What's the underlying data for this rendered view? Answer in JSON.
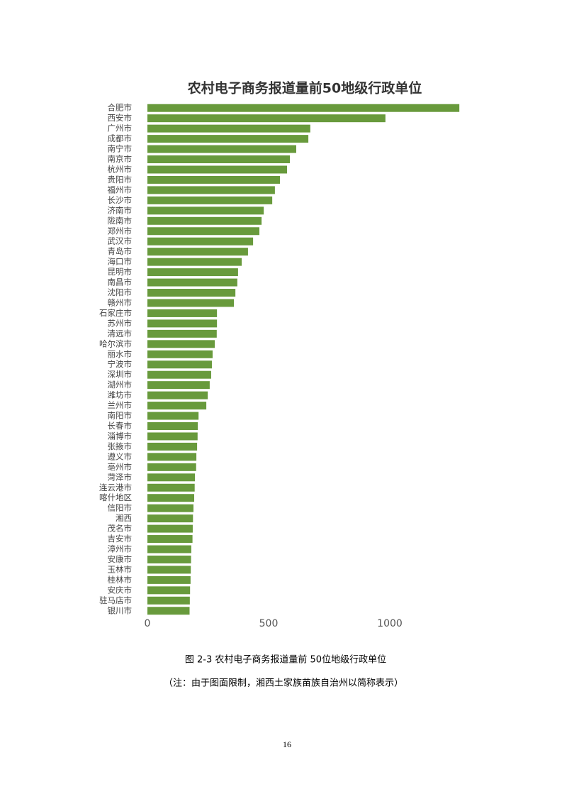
{
  "chart_data": {
    "type": "bar",
    "orientation": "horizontal",
    "title": "农村电子商务报道量前50地级行政单位",
    "categories": [
      "合肥市",
      "西安市",
      "广州市",
      "成都市",
      "南宁市",
      "南京市",
      "杭州市",
      "贵阳市",
      "福州市",
      "长沙市",
      "济南市",
      "陇南市",
      "郑州市",
      "武汉市",
      "青岛市",
      "海口市",
      "昆明市",
      "南昌市",
      "沈阳市",
      "赣州市",
      "石家庄市",
      "苏州市",
      "清远市",
      "哈尔滨市",
      "丽水市",
      "宁波市",
      "深圳市",
      "湖州市",
      "潍坊市",
      "兰州市",
      "南阳市",
      "长春市",
      "淄博市",
      "张掖市",
      "遵义市",
      "亳州市",
      "菏泽市",
      "连云港市",
      "喀什地区",
      "信阳市",
      "湘西",
      "茂名市",
      "吉安市",
      "漳州市",
      "安康市",
      "玉林市",
      "桂林市",
      "安庆市",
      "驻马店市",
      "银川市"
    ],
    "values": [
      1287,
      982,
      672,
      664,
      614,
      588,
      576,
      547,
      526,
      515,
      480,
      471,
      462,
      436,
      415,
      389,
      374,
      371,
      363,
      357,
      287,
      287,
      286,
      278,
      269,
      266,
      263,
      257,
      249,
      243,
      211,
      208,
      207,
      205,
      202,
      201,
      196,
      195,
      193,
      190,
      188,
      187,
      186,
      181,
      180,
      179,
      178,
      176,
      175,
      174
    ],
    "color": "#689a3c",
    "xlim": [
      0,
      1300
    ],
    "xticks": [
      0,
      500,
      1000
    ],
    "grid": false
  },
  "caption": "图 2-3 农村电子商务报道量前 50位地级行政单位",
  "note": "（注：由于图面限制，湘西土家族苗族自治州以简称表示）",
  "page_number": "16"
}
